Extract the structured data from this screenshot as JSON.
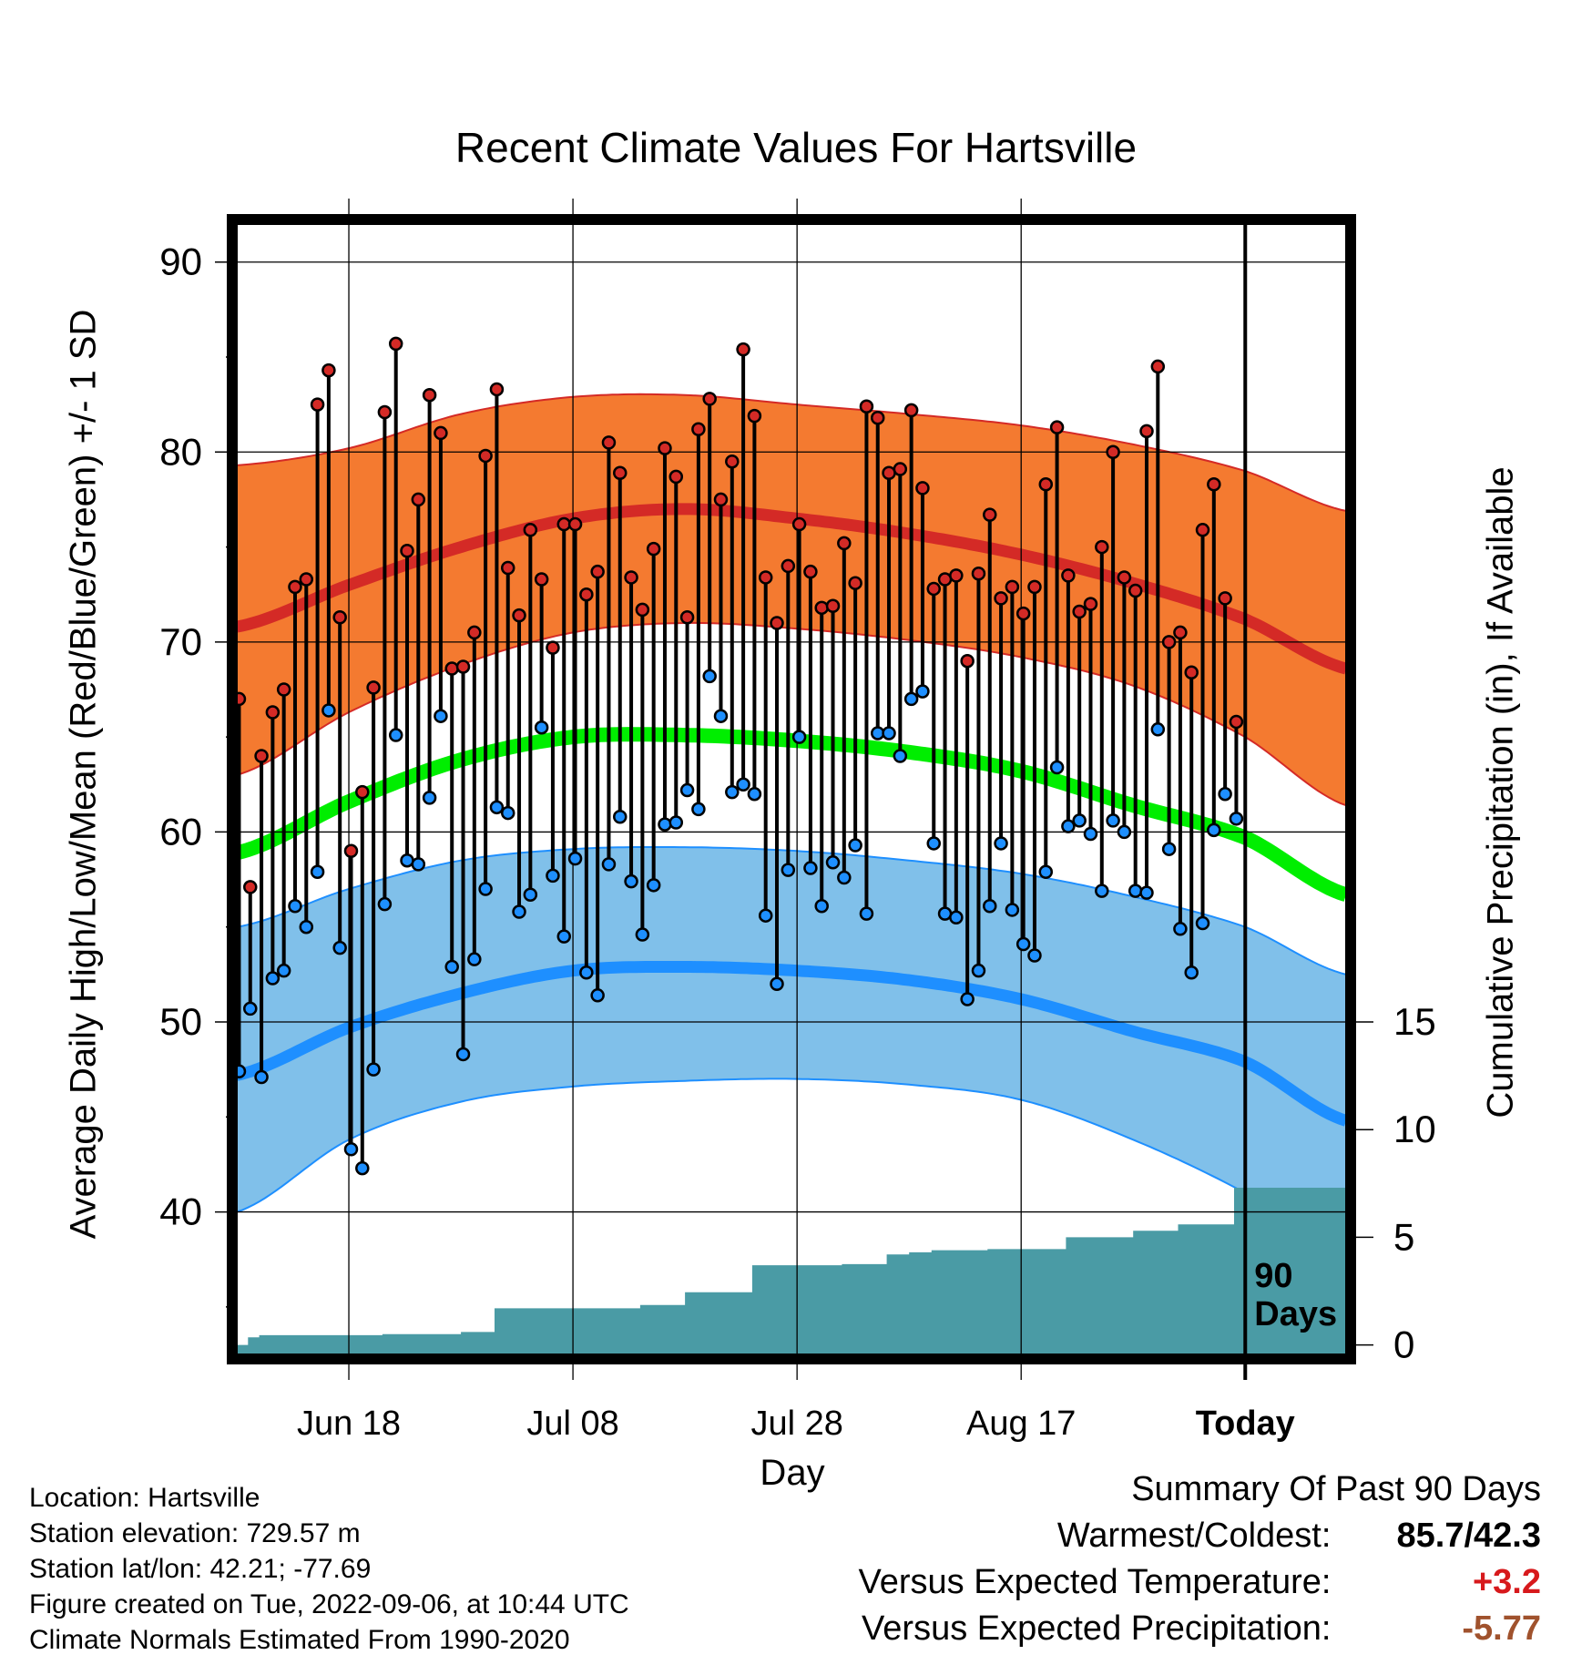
{
  "title": "Recent Climate Values For Hartsville",
  "ylabel_left": "Average Daily High/Low/Mean (Red/Blue/Green) +/- 1 SD",
  "ylabel_right": "Cumulative Precipitation (in), If Available",
  "xlabel": "Day",
  "today_label_line1": "90",
  "today_label_line2": "Days",
  "meta": {
    "location": "Location: Hartsville",
    "elevation": "Station elevation: 729.57 m",
    "latlon": "Station lat/lon: 42.21; -77.69",
    "created": "Figure created on Tue, 2022-09-06, at 10:44 UTC",
    "normals": "Climate Normals Estimated From 1990-2020"
  },
  "summary": {
    "heading": "Summary Of Past 90 Days",
    "warm_cold_label": "Warmest/Coldest:",
    "warm_cold_value": "85.7/42.3",
    "temp_label": "Versus Expected Temperature:",
    "temp_value": "+3.2",
    "precip_label": "Versus Expected Precipitation:",
    "precip_value": "-5.77"
  },
  "colors": {
    "high_band": "#f47a30",
    "high_line": "#d42a26",
    "low_band": "#80c0ea",
    "low_line": "#1e8fff",
    "mean_line": "#00ee00",
    "precip_fill": "#4a9ba5",
    "high_dot": "#d42a26",
    "low_dot": "#1e8fff"
  },
  "chart_data": {
    "type": "line",
    "x_start": "Jun 8",
    "x_tick_labels": [
      "Jun 18",
      "Jul 08",
      "Jul 28",
      "Aug 17",
      "Today"
    ],
    "x_tick_days": [
      10,
      30,
      50,
      70,
      90
    ],
    "x_range": [
      0,
      99
    ],
    "y_left_range": [
      32.5,
      92
    ],
    "y_left_ticks": [
      40,
      50,
      60,
      70,
      80,
      90
    ],
    "y_right_ticks": [
      0,
      5,
      10,
      15
    ],
    "y_right_axis_at_left_values": {
      "0": 33,
      "15": 50
    },
    "grid": true,
    "normals": {
      "days": [
        0,
        10,
        20,
        30,
        40,
        50,
        60,
        70,
        80,
        90,
        99
      ],
      "high_mean": [
        70.8,
        73.0,
        75.0,
        76.5,
        77.0,
        76.5,
        75.7,
        74.6,
        73.1,
        71.2,
        68.6
      ],
      "high_upper": [
        79.3,
        80.2,
        82.0,
        82.9,
        83.0,
        82.5,
        82.0,
        81.4,
        80.4,
        79.0,
        76.9
      ],
      "high_lower": [
        63.0,
        66.3,
        68.8,
        70.5,
        71.0,
        70.7,
        70.1,
        69.2,
        67.7,
        65.0,
        61.4
      ],
      "mean": [
        58.9,
        61.6,
        63.8,
        65.0,
        65.1,
        64.8,
        64.2,
        63.2,
        61.4,
        59.7,
        56.7
      ],
      "low_mean": [
        47.2,
        49.7,
        51.5,
        52.7,
        52.9,
        52.7,
        52.2,
        51.2,
        49.5,
        47.9,
        44.8
      ],
      "low_upper": [
        55.0,
        57.0,
        58.5,
        59.1,
        59.2,
        59.0,
        58.5,
        57.8,
        56.6,
        55.0,
        52.5
      ],
      "low_lower": [
        40.0,
        43.8,
        45.8,
        46.6,
        46.9,
        47.0,
        46.7,
        45.9,
        43.8,
        41.0,
        37.5
      ]
    },
    "series": [
      {
        "name": "High",
        "values": [
          67.0,
          57.1,
          64.0,
          66.3,
          67.5,
          72.9,
          73.3,
          82.5,
          84.3,
          71.3,
          59.0,
          62.1,
          67.6,
          82.1,
          85.7,
          74.8,
          77.5,
          83.0,
          81.0,
          68.6,
          68.7,
          70.5,
          79.8,
          83.3,
          73.9,
          71.4,
          75.9,
          73.3,
          69.7,
          76.2,
          76.2,
          72.5,
          73.7,
          80.5,
          78.9,
          73.4,
          71.7,
          74.9,
          80.2,
          78.7,
          71.3,
          81.2,
          82.8,
          77.5,
          79.5,
          85.4,
          81.9,
          73.4,
          71.0,
          74.0,
          76.2,
          73.7,
          71.8,
          71.9,
          75.2,
          73.1,
          82.4,
          81.8,
          78.9,
          79.1,
          82.2,
          78.1,
          72.8,
          73.3,
          73.5,
          69.0,
          73.6,
          76.7,
          72.3,
          72.9,
          71.5,
          72.9,
          78.3,
          81.3,
          73.5,
          71.6,
          72.0,
          75.0,
          80.0,
          73.4,
          72.7,
          81.1,
          84.5,
          70.0,
          70.5,
          68.4,
          75.9,
          78.3,
          72.3,
          65.8
        ]
      },
      {
        "name": "Low",
        "values": [
          47.4,
          50.7,
          47.1,
          52.3,
          52.7,
          56.1,
          55.0,
          57.9,
          66.4,
          53.9,
          43.3,
          42.3,
          47.5,
          56.2,
          65.1,
          58.5,
          58.3,
          61.8,
          66.1,
          52.9,
          48.3,
          53.3,
          57.0,
          61.3,
          61.0,
          55.8,
          56.7,
          65.5,
          57.7,
          54.5,
          58.6,
          52.6,
          51.4,
          58.3,
          60.8,
          57.4,
          54.6,
          57.2,
          60.4,
          60.5,
          62.2,
          61.2,
          68.2,
          66.1,
          62.1,
          62.5,
          62.0,
          55.6,
          52.0,
          58.0,
          65.0,
          58.1,
          56.1,
          58.4,
          57.6,
          59.3,
          55.7,
          65.2,
          65.2,
          64.0,
          67.0,
          67.4,
          59.4,
          55.7,
          55.5,
          51.2,
          52.7,
          56.1,
          59.4,
          55.9,
          54.1,
          53.5,
          57.9,
          63.4,
          60.3,
          60.6,
          59.9,
          56.9,
          60.6,
          60.0,
          56.9,
          56.8,
          65.4,
          59.1,
          54.9,
          52.6,
          55.2,
          60.1,
          62.0,
          60.7
        ]
      },
      {
        "name": "Cumulative Precipitation",
        "step_days": [
          0,
          1,
          2,
          13,
          20,
          23,
          30,
          36,
          40,
          42,
          46,
          54,
          58,
          60,
          62,
          67,
          74,
          80,
          84,
          89,
          90,
          99
        ],
        "values": [
          0.0,
          0.35,
          0.45,
          0.5,
          0.6,
          1.7,
          1.7,
          1.85,
          2.45,
          2.45,
          3.7,
          3.75,
          4.2,
          4.3,
          4.4,
          4.45,
          5.0,
          5.3,
          5.6,
          7.3,
          7.3,
          7.3
        ]
      }
    ]
  }
}
